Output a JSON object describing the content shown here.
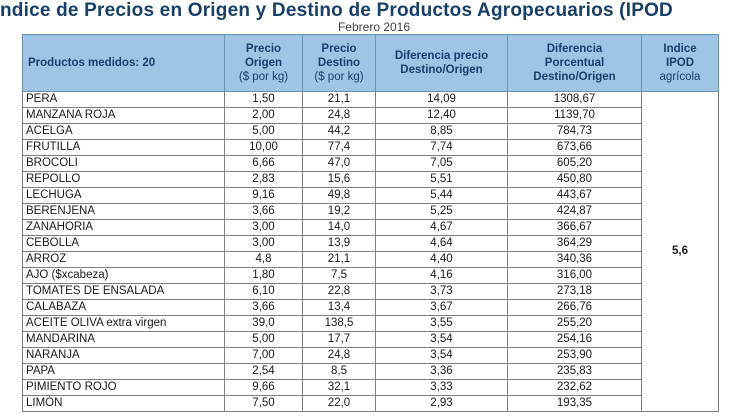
{
  "title": "ndice de Precios en Origen y Destino de Productos Agropecuarios (IPOD",
  "subtitle": "Febrero 2016",
  "headers": {
    "product": "Productos medidos: 20",
    "origin": [
      "Precio",
      "Origen",
      "($ por kg)"
    ],
    "destination": [
      "Precio",
      "Destino",
      "($ por kg)"
    ],
    "difference": [
      "Diferencia precio",
      "Destino/Origen"
    ],
    "percent": [
      "Diferencia",
      "Porcentual",
      "Destino/Origen"
    ],
    "ipod": [
      "Indice",
      "IPOD",
      "agrícola"
    ]
  },
  "ipod_value": "5,6",
  "rows": [
    {
      "product": "PERA",
      "origin": "1,50",
      "destination": "21,1",
      "difference": "14,09",
      "percent": "1308,67"
    },
    {
      "product": "MANZANA ROJA",
      "origin": "2,00",
      "destination": "24,8",
      "difference": "12,40",
      "percent": "1139,70"
    },
    {
      "product": "ACELGA",
      "origin": "5,00",
      "destination": "44,2",
      "difference": "8,85",
      "percent": "784,73"
    },
    {
      "product": "FRUTILLA",
      "origin": "10,00",
      "destination": "77,4",
      "difference": "7,74",
      "percent": "673,66"
    },
    {
      "product": "BROCOLI",
      "origin": "6,66",
      "destination": "47,0",
      "difference": "7,05",
      "percent": "605,20"
    },
    {
      "product": "REPOLLO",
      "origin": "2,83",
      "destination": "15,6",
      "difference": "5,51",
      "percent": "450,80"
    },
    {
      "product": "LECHUGA",
      "origin": "9,16",
      "destination": "49,8",
      "difference": "5,44",
      "percent": "443,67"
    },
    {
      "product": "BERENJENA",
      "origin": "3,66",
      "destination": "19,2",
      "difference": "5,25",
      "percent": "424,87"
    },
    {
      "product": "ZANAHORIA",
      "origin": "3,00",
      "destination": "14,0",
      "difference": "4,67",
      "percent": "366,67"
    },
    {
      "product": "CEBOLLA",
      "origin": "3,00",
      "destination": "13,9",
      "difference": "4,64",
      "percent": "364,29"
    },
    {
      "product": "ARROZ",
      "origin": "4,8",
      "destination": "21,1",
      "difference": "4,40",
      "percent": "340,36"
    },
    {
      "product": "AJO ($xcabeza)",
      "origin": "1,80",
      "destination": "7,5",
      "difference": "4,16",
      "percent": "316,00"
    },
    {
      "product": "TOMATES DE ENSALADA",
      "origin": "6,10",
      "destination": "22,8",
      "difference": "3,73",
      "percent": "273,18"
    },
    {
      "product": "CALABAZA",
      "origin": "3,66",
      "destination": "13,4",
      "difference": "3,67",
      "percent": "266,76"
    },
    {
      "product": "ACEITE OLIVA extra virgen",
      "origin": "39,0",
      "destination": "138,5",
      "difference": "3,55",
      "percent": "255,20"
    },
    {
      "product": "MANDARINA",
      "origin": "5,00",
      "destination": "17,7",
      "difference": "3,54",
      "percent": "254,16"
    },
    {
      "product": "NARANJA",
      "origin": "7,00",
      "destination": "24,8",
      "difference": "3,54",
      "percent": "253,90"
    },
    {
      "product": "PAPA",
      "origin": "2,54",
      "destination": "8,5",
      "difference": "3,36",
      "percent": "235,83"
    },
    {
      "product": "PIMIENTO ROJO",
      "origin": "9,66",
      "destination": "32,1",
      "difference": "3,33",
      "percent": "232,62"
    },
    {
      "product": "LIMÓN",
      "origin": "7,50",
      "destination": "22,0",
      "difference": "2,93",
      "percent": "193,35"
    }
  ]
}
